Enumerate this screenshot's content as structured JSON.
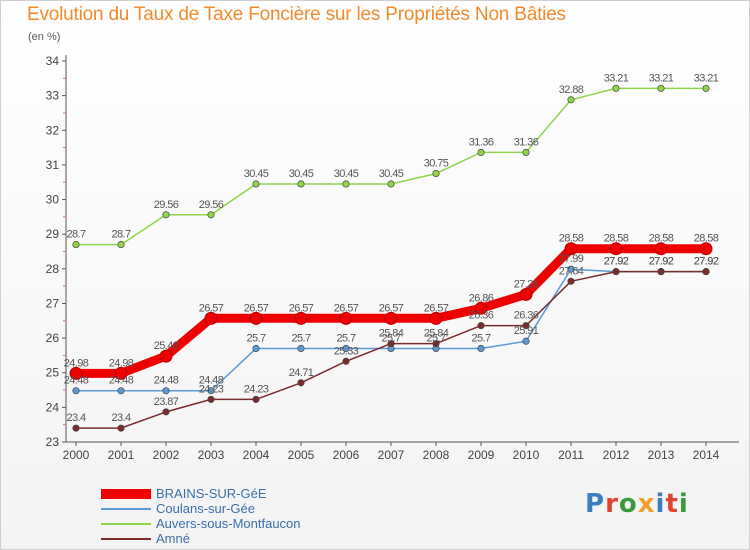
{
  "header": {
    "title": "Evolution du Taux de Taxe Foncière sur les Propriétés Non Bâties",
    "unit": "(en %)"
  },
  "brand": {
    "logo_text": "Proxiti",
    "letter_colors": [
      "#3a7fc4",
      "#e0452f",
      "#3a9b3a",
      "#f2a12c",
      "#3a7fc4",
      "#e0452f",
      "#3a9b3a"
    ]
  },
  "chart_data": {
    "type": "line",
    "title": "Evolution du Taux de Taxe Foncière sur les Propriétés Non Bâties",
    "ylabel": "(en %)",
    "xlabel": "",
    "x": [
      "2000",
      "2001",
      "2002",
      "2003",
      "2004",
      "2005",
      "2006",
      "2007",
      "2008",
      "2009",
      "2010",
      "2011",
      "2012",
      "2013",
      "2014"
    ],
    "ylim": [
      23,
      34
    ],
    "yticks": [
      23,
      24,
      25,
      26,
      27,
      28,
      29,
      30,
      31,
      32,
      33,
      34
    ],
    "grid": false,
    "legend_position": "bottom-left",
    "series": [
      {
        "name": "BRAINS-SUR-GéE",
        "color": "#ee0000",
        "values": [
          24.98,
          24.98,
          25.48,
          26.57,
          26.57,
          26.57,
          26.57,
          26.57,
          26.57,
          26.86,
          27.26,
          28.58,
          28.58,
          28.58,
          28.58
        ],
        "labels": [
          "24.98",
          "24.98",
          "25.48",
          "26.57",
          "26.57",
          "26.57",
          "26.57",
          "26.57",
          "26.57",
          "26.86",
          "27.26",
          "28.58",
          "28.58",
          "28.58",
          "28.58"
        ]
      },
      {
        "name": "Coulans-sur-Gée",
        "color": "#5b9bd5",
        "values": [
          24.48,
          24.48,
          24.48,
          24.48,
          25.7,
          25.7,
          25.7,
          25.7,
          25.7,
          25.7,
          25.91,
          27.99,
          27.92,
          27.92,
          27.92
        ],
        "labels": [
          "24.48",
          "24.48",
          "24.48",
          "24.48",
          "25.7",
          "25.7",
          "25.7",
          "25.7",
          "25.7",
          "25.7",
          "25.91",
          "27.99",
          "27.92",
          "27.92",
          "27.92"
        ]
      },
      {
        "name": "Auvers-sous-Montfaucon",
        "color": "#8ed54a",
        "values": [
          28.7,
          28.7,
          29.56,
          29.56,
          30.45,
          30.45,
          30.45,
          30.45,
          30.75,
          31.36,
          31.36,
          32.88,
          33.21,
          33.21,
          33.21
        ],
        "labels": [
          "28.7",
          "28.7",
          "29.56",
          "29.56",
          "30.45",
          "30.45",
          "30.45",
          "30.45",
          "30.75",
          "31.36",
          "31.36",
          "32.88",
          "33.21",
          "33.21",
          "33.21"
        ]
      },
      {
        "name": "Amné",
        "color": "#7a2b2b",
        "values": [
          23.4,
          23.4,
          23.87,
          24.23,
          24.23,
          24.71,
          25.33,
          25.84,
          25.84,
          26.36,
          26.36,
          27.64,
          27.92,
          27.92,
          27.92
        ],
        "labels": [
          "23.4",
          "23.4",
          "23.87",
          "24.23",
          "24.23",
          "24.71",
          "25.33",
          "25.84",
          "25.84",
          "26.36",
          "26.36",
          "27.64",
          "27.92",
          "27.92",
          "27.92"
        ]
      }
    ]
  }
}
